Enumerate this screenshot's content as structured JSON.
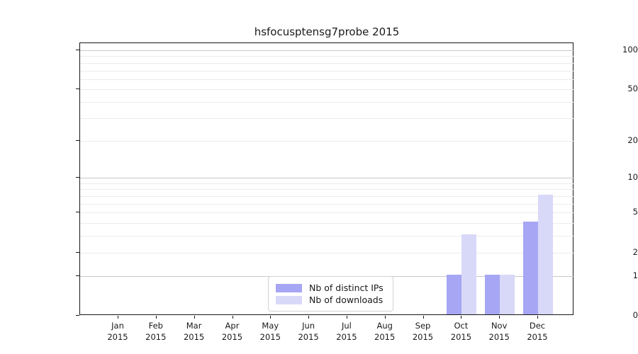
{
  "chart_data": {
    "type": "bar",
    "title": "hsfocusptensg7probe 2015",
    "categories": [
      "Jan 2015",
      "Feb 2015",
      "Mar 2015",
      "Apr 2015",
      "May 2015",
      "Jun 2015",
      "Jul 2015",
      "Aug 2015",
      "Sep 2015",
      "Oct 2015",
      "Nov 2015",
      "Dec 2015"
    ],
    "series": [
      {
        "name": "Nb of distinct IPs",
        "color": "#a6a6f4",
        "values": [
          0,
          0,
          0,
          0,
          0,
          0,
          0,
          0,
          0,
          1,
          1,
          4
        ]
      },
      {
        "name": "Nb of downloads",
        "color": "#d8d8f8",
        "values": [
          0,
          0,
          0,
          0,
          0,
          0,
          0,
          0,
          0,
          3,
          1,
          7
        ]
      }
    ],
    "xlabel": "",
    "ylabel": "",
    "y_axis": {
      "scale": "log1p",
      "tick_labels": [
        0,
        1,
        2,
        5,
        10,
        20,
        50,
        100
      ],
      "major_gridlines": [
        1,
        10,
        100
      ],
      "minor_gridlines": [
        2,
        3,
        4,
        5,
        6,
        7,
        8,
        9,
        20,
        30,
        40,
        50,
        60,
        70,
        80,
        90
      ],
      "ylim": [
        0,
        113
      ]
    },
    "legend": {
      "position": "lower-center-inside",
      "entries": [
        "Nb of distinct IPs",
        "Nb of downloads"
      ]
    },
    "grid": true,
    "colors": {
      "axis_frame": "#161616",
      "major_grid": "#c9c9c9",
      "minor_grid": "#ececec"
    }
  }
}
